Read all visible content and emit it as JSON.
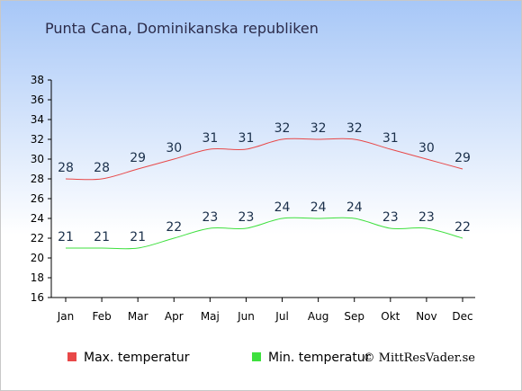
{
  "chart_data": {
    "type": "line",
    "title": "Punta Cana, Dominikanska republiken",
    "categories": [
      "Jan",
      "Feb",
      "Mar",
      "Apr",
      "Maj",
      "Jun",
      "Jul",
      "Aug",
      "Sep",
      "Okt",
      "Nov",
      "Dec"
    ],
    "series": [
      {
        "name": "Max. temperatur",
        "color": "#e84848",
        "values": [
          28,
          28,
          29,
          30,
          31,
          31,
          32,
          32,
          32,
          31,
          30,
          29
        ]
      },
      {
        "name": "Min. temperatur",
        "color": "#3ee03e",
        "values": [
          21,
          21,
          21,
          22,
          23,
          23,
          24,
          24,
          24,
          23,
          23,
          22
        ]
      }
    ],
    "ylim": [
      16,
      38
    ],
    "yticks": [
      "16",
      "18",
      "20",
      "22",
      "24",
      "26",
      "28",
      "30",
      "32",
      "34",
      "36",
      "38"
    ],
    "xlabel": "",
    "ylabel": "",
    "grid": false,
    "legend_position": "bottom"
  },
  "credit": "© MittResVader.se",
  "colors": {
    "background_top": "#a7c7f7",
    "background_bottom": "#ffffff",
    "axis": "#000000"
  }
}
